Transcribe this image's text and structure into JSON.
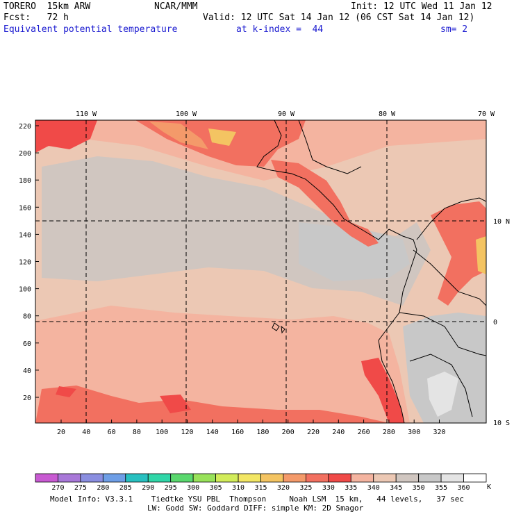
{
  "header": {
    "model": "TORERO  15km ARW",
    "org": "NCAR/MMM",
    "init": "Init: 12 UTC Wed 11 Jan 12",
    "fcst": "Fcst:   72 h",
    "valid": "Valid: 12 UTC Sat 14 Jan 12 (06 CST Sat 14 Jan 12)",
    "field": "Equivalent potential temperature",
    "level": "at k-index =  44",
    "smoothing": "sm= 2"
  },
  "map": {
    "lon_labels": [
      "110 W",
      "100 W",
      "90 W",
      "80 W",
      "70 W"
    ],
    "lat_labels": [
      "10 N",
      "0",
      "10 S"
    ],
    "grid_x_labels": [
      "20",
      "40",
      "60",
      "80",
      "100",
      "120",
      "140",
      "160",
      "180",
      "200",
      "220",
      "240",
      "260",
      "280",
      "300",
      "320"
    ],
    "grid_y_labels": [
      "220",
      "200",
      "180",
      "160",
      "140",
      "120",
      "100",
      "80",
      "60",
      "40",
      "20"
    ]
  },
  "colorbar": {
    "labels": [
      "270",
      "275",
      "280",
      "285",
      "290",
      "295",
      "300",
      "305",
      "310",
      "315",
      "320",
      "325",
      "330",
      "335",
      "340",
      "345",
      "350",
      "355",
      "360"
    ],
    "unit": "K",
    "colors": [
      "#c85ad2",
      "#a878d8",
      "#8a8ee0",
      "#6e9ee6",
      "#28c0c0",
      "#30d6a8",
      "#5ad86e",
      "#98e25a",
      "#d2ec5a",
      "#f2e664",
      "#f4c462",
      "#f49a6a",
      "#f27060",
      "#f04a48",
      "#f4b4a0",
      "#ecc8b4",
      "#d0c6c0",
      "#c8c8c8",
      "#e4e4e4",
      "#ffffff"
    ]
  },
  "footer": {
    "line1": "Model Info: V3.3.1    Tiedtke YSU PBL  Thompson     Noah LSM  15 km,   44 levels,   37 sec",
    "line2": "LW: Godd SW: Goddard DIFF: simple KM: 2D Smagor"
  }
}
